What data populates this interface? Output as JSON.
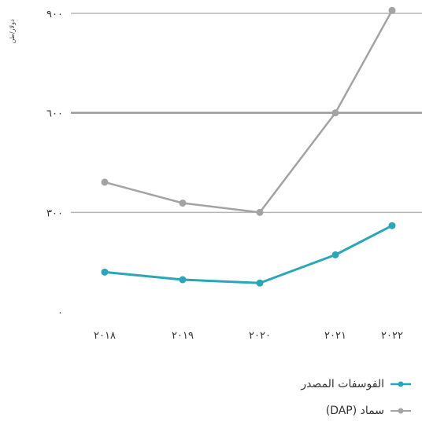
{
  "chart_data": {
    "type": "line",
    "categories": [
      "٢٠١٨",
      "٢٠١٩",
      "٢٠٢٠",
      "٢٠٢١",
      "٢٠٢٢"
    ],
    "ylabel": "دولار/طن",
    "ylim": [
      0,
      900
    ],
    "yticks": [
      0,
      300,
      600,
      900
    ],
    "ytick_labels": [
      "٠",
      "٣٠٠",
      "٦٠٠",
      "٩٠٠"
    ],
    "grid": true,
    "legend_position": "bottom-right",
    "series": [
      {
        "name": "الفوسفات المصدر",
        "color": "#2aa6b9",
        "values": [
          120,
          97,
          87,
          172,
          260
        ]
      },
      {
        "name": "سماد (DAP)",
        "color": "#a3a3a3",
        "values": [
          391,
          328,
          300,
          600,
          909
        ]
      }
    ]
  }
}
